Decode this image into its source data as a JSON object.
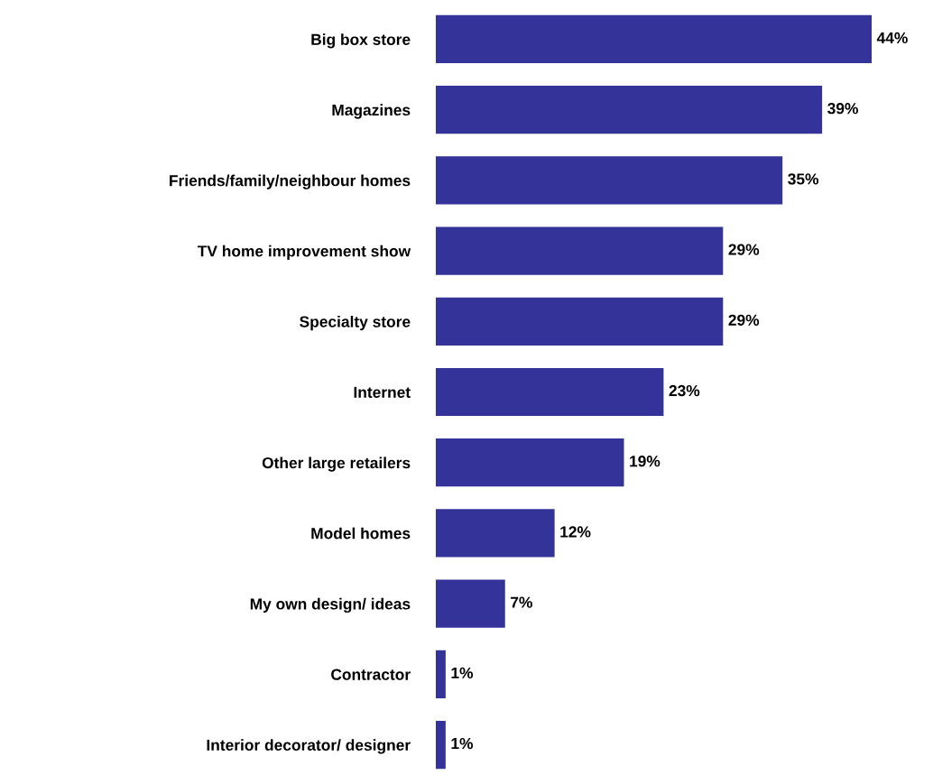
{
  "chart_data": {
    "type": "bar",
    "orientation": "horizontal",
    "categories": [
      "Big box store",
      "Magazines",
      "Friends/family/neighbour homes",
      "TV home improvement show",
      "Specialty store",
      "Internet",
      "Other large retailers",
      "Model homes",
      "My own design/ ideas",
      "Contractor",
      "Interior decorator/ designer"
    ],
    "values": [
      44,
      39,
      35,
      29,
      29,
      23,
      19,
      12,
      7,
      1,
      1
    ],
    "value_labels": [
      "44%",
      "39%",
      "35%",
      "29%",
      "29%",
      "23%",
      "19%",
      "12%",
      "7%",
      "1%",
      "1%"
    ],
    "color": "#333399",
    "grid": false,
    "legend": false
  }
}
